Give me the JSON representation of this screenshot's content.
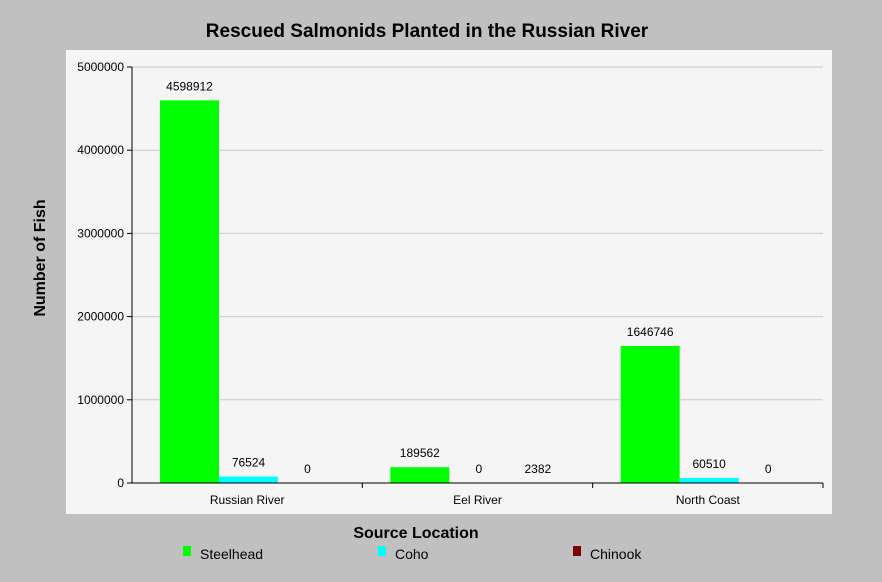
{
  "chart_data": {
    "type": "bar",
    "title": "Rescued Salmonids Planted in the Russian River",
    "xlabel": "Source Location",
    "ylabel": "Number of Fish",
    "ylim": [
      0,
      5000000
    ],
    "yticks": [
      0,
      1000000,
      2000000,
      3000000,
      4000000,
      5000000
    ],
    "ytick_labels": [
      "0",
      "1000000",
      "2000000",
      "3000000",
      "4000000",
      "5000000"
    ],
    "categories": [
      "Russian River",
      "Eel River",
      "North Coast"
    ],
    "series": [
      {
        "name": "Steelhead",
        "color": "#00ff00",
        "values": [
          4598912,
          189562,
          1646746
        ],
        "labels": [
          "4598912",
          "189562",
          "1646746"
        ]
      },
      {
        "name": "Coho",
        "color": "#00ffff",
        "values": [
          76524,
          0,
          60510
        ],
        "labels": [
          "76524",
          "0",
          "60510"
        ]
      },
      {
        "name": "Chinook",
        "color": "#800000",
        "values": [
          0,
          2382,
          0
        ],
        "labels": [
          "0",
          "2382",
          "0"
        ]
      }
    ],
    "grid": true,
    "legend_position": "bottom"
  }
}
